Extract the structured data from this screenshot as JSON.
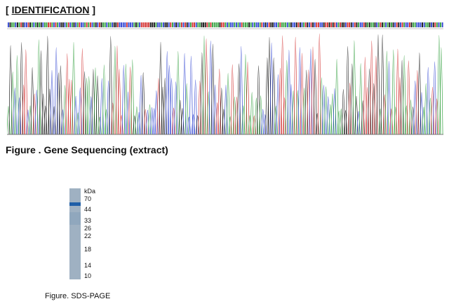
{
  "heading": {
    "open": "[ ",
    "title": "IDENTIFICATION",
    "close": " ]"
  },
  "sequencing": {
    "caption": "Figure . Gene Sequencing (extract)",
    "base_colors": {
      "A": "#2e9e3a",
      "C": "#2a3fd1",
      "G": "#111111",
      "T": "#d12a2a"
    }
  },
  "sds_page": {
    "unit": "kDa",
    "markers": [
      "70",
      "44",
      "33",
      "26",
      "22",
      "18",
      "14",
      "10"
    ],
    "caption": "Figure. SDS-PAGE",
    "lane_color": "#9fb1c2",
    "band_color": "#1f5fa8"
  }
}
